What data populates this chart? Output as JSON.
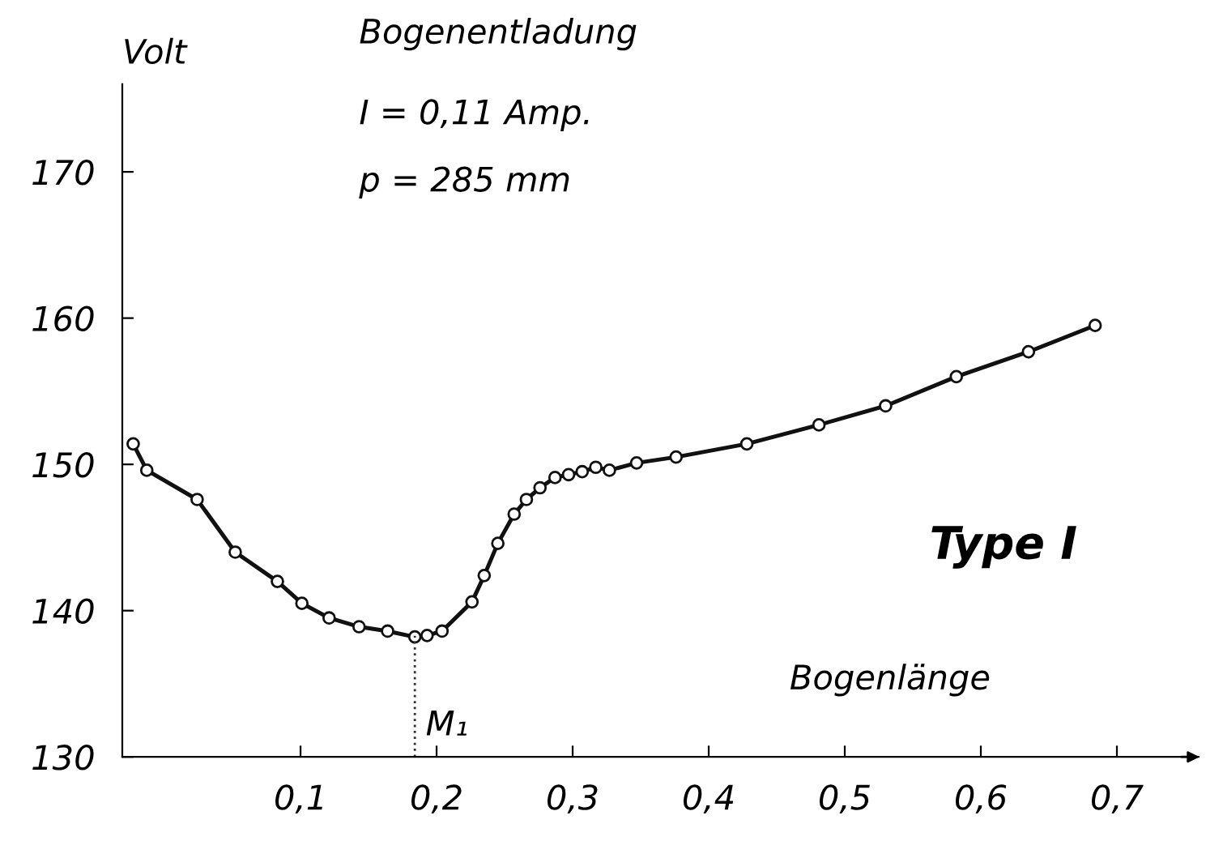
{
  "chart_data": {
    "type": "line",
    "title": "Bogenentladung",
    "xlabel": "Bogenlänge",
    "ylabel": "Volt",
    "annotations": [
      "I = 0,11 Amp.",
      "p = 285 mm",
      "Type I"
    ],
    "x": [
      -0.023,
      -0.013,
      0.024,
      0.052,
      0.083,
      0.101,
      0.121,
      0.143,
      0.164,
      0.184,
      0.193,
      0.204,
      0.226,
      0.235,
      0.245,
      0.257,
      0.266,
      0.276,
      0.287,
      0.297,
      0.307,
      0.317,
      0.327,
      0.347,
      0.376,
      0.428,
      0.481,
      0.53,
      0.582,
      0.635,
      0.684
    ],
    "series": [
      {
        "color": "#111111",
        "values": [
          151.4,
          149.6,
          147.6,
          144.0,
          142.0,
          140.5,
          139.5,
          138.9,
          138.6,
          138.2,
          138.3,
          138.6,
          140.6,
          142.4,
          144.6,
          146.6,
          147.6,
          148.4,
          149.1,
          149.3,
          149.5,
          149.8,
          149.6,
          150.1,
          150.5,
          151.4,
          152.7,
          154.0,
          156.0,
          157.7,
          159.5
        ]
      }
    ],
    "marker": "circle",
    "line_style": "solid",
    "grid": false,
    "legend": false,
    "ref_lines": [
      {
        "axis": "x",
        "value": 0.184,
        "label": "M₁",
        "line_style": "dotted"
      }
    ],
    "xlim": [
      -0.031,
      0.76
    ],
    "ylim": [
      130,
      176
    ],
    "xticks": [
      {
        "value": 0.1,
        "label": "0,1"
      },
      {
        "value": 0.2,
        "label": "0,2"
      },
      {
        "value": 0.3,
        "label": "0,3"
      },
      {
        "value": 0.4,
        "label": "0,4"
      },
      {
        "value": 0.5,
        "label": "0,5"
      },
      {
        "value": 0.6,
        "label": "0,6"
      },
      {
        "value": 0.7,
        "label": "0,7"
      }
    ],
    "yticks": [
      130,
      140,
      150,
      160,
      170
    ]
  }
}
